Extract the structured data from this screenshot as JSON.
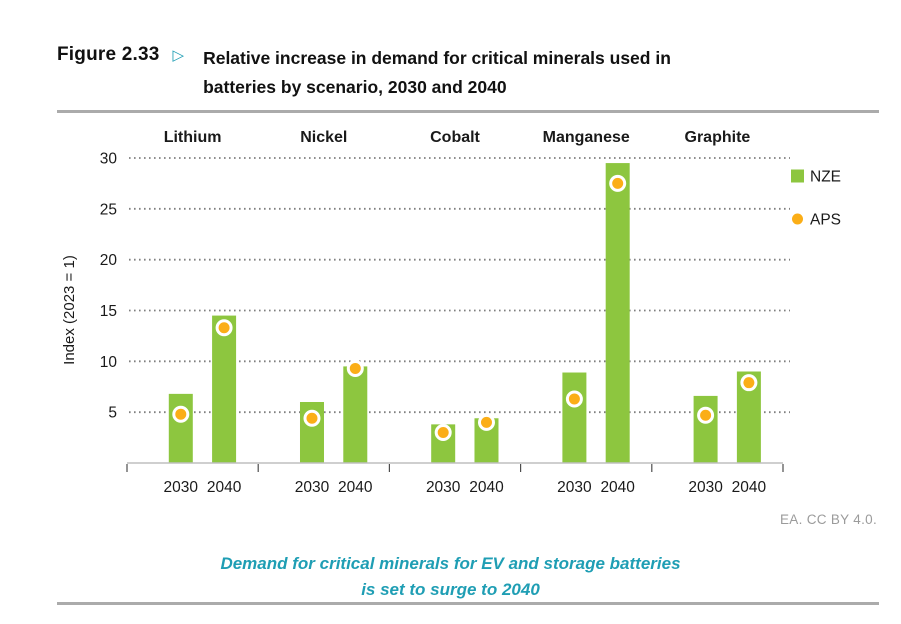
{
  "figure_header": {
    "label": "Figure 2.33",
    "marker": "▷",
    "title_lines": [
      "Relative increase in demand for critical minerals used in",
      "batteries by scenario, 2030 and 2040"
    ]
  },
  "chart_data": {
    "type": "bar",
    "title": "Relative increase in demand for critical minerals used in batteries by scenario, 2030 and 2040",
    "ylabel": "Index (2023 = 1)",
    "ylim": [
      0,
      30
    ],
    "yticks": [
      5,
      10,
      15,
      20,
      25,
      30
    ],
    "grid": "horizontal-dotted",
    "legend_position": "right",
    "groups": [
      "Lithium",
      "Nickel",
      "Cobalt",
      "Manganese",
      "Graphite"
    ],
    "x_labels": [
      "2030",
      "2040"
    ],
    "series": [
      {
        "name": "NZE",
        "kind": "bar",
        "color": "#8DC63F",
        "values": [
          [
            6.8,
            14.5
          ],
          [
            6.0,
            9.5
          ],
          [
            3.8,
            4.4
          ],
          [
            8.9,
            29.5
          ],
          [
            6.6,
            9.0
          ]
        ]
      },
      {
        "name": "APS",
        "kind": "dot",
        "color": "#FBAE17",
        "values": [
          [
            4.8,
            13.3
          ],
          [
            4.4,
            9.3
          ],
          [
            3.0,
            4.0
          ],
          [
            6.3,
            27.5
          ],
          [
            4.7,
            7.9
          ]
        ]
      }
    ]
  },
  "source": "EA. CC BY 4.0.",
  "caption": {
    "lines": [
      "Demand for critical minerals for EV and storage batteries",
      "is set to surge to 2040"
    ]
  },
  "colors": {
    "bar_green": "#8DC63F",
    "dot_orange": "#FBAE17",
    "teal_accent": "#1F9EB4",
    "rule_gray": "#ABABAB",
    "source_gray": "#9B9B9B",
    "grid_dot_gray": "#7F7F7F"
  }
}
